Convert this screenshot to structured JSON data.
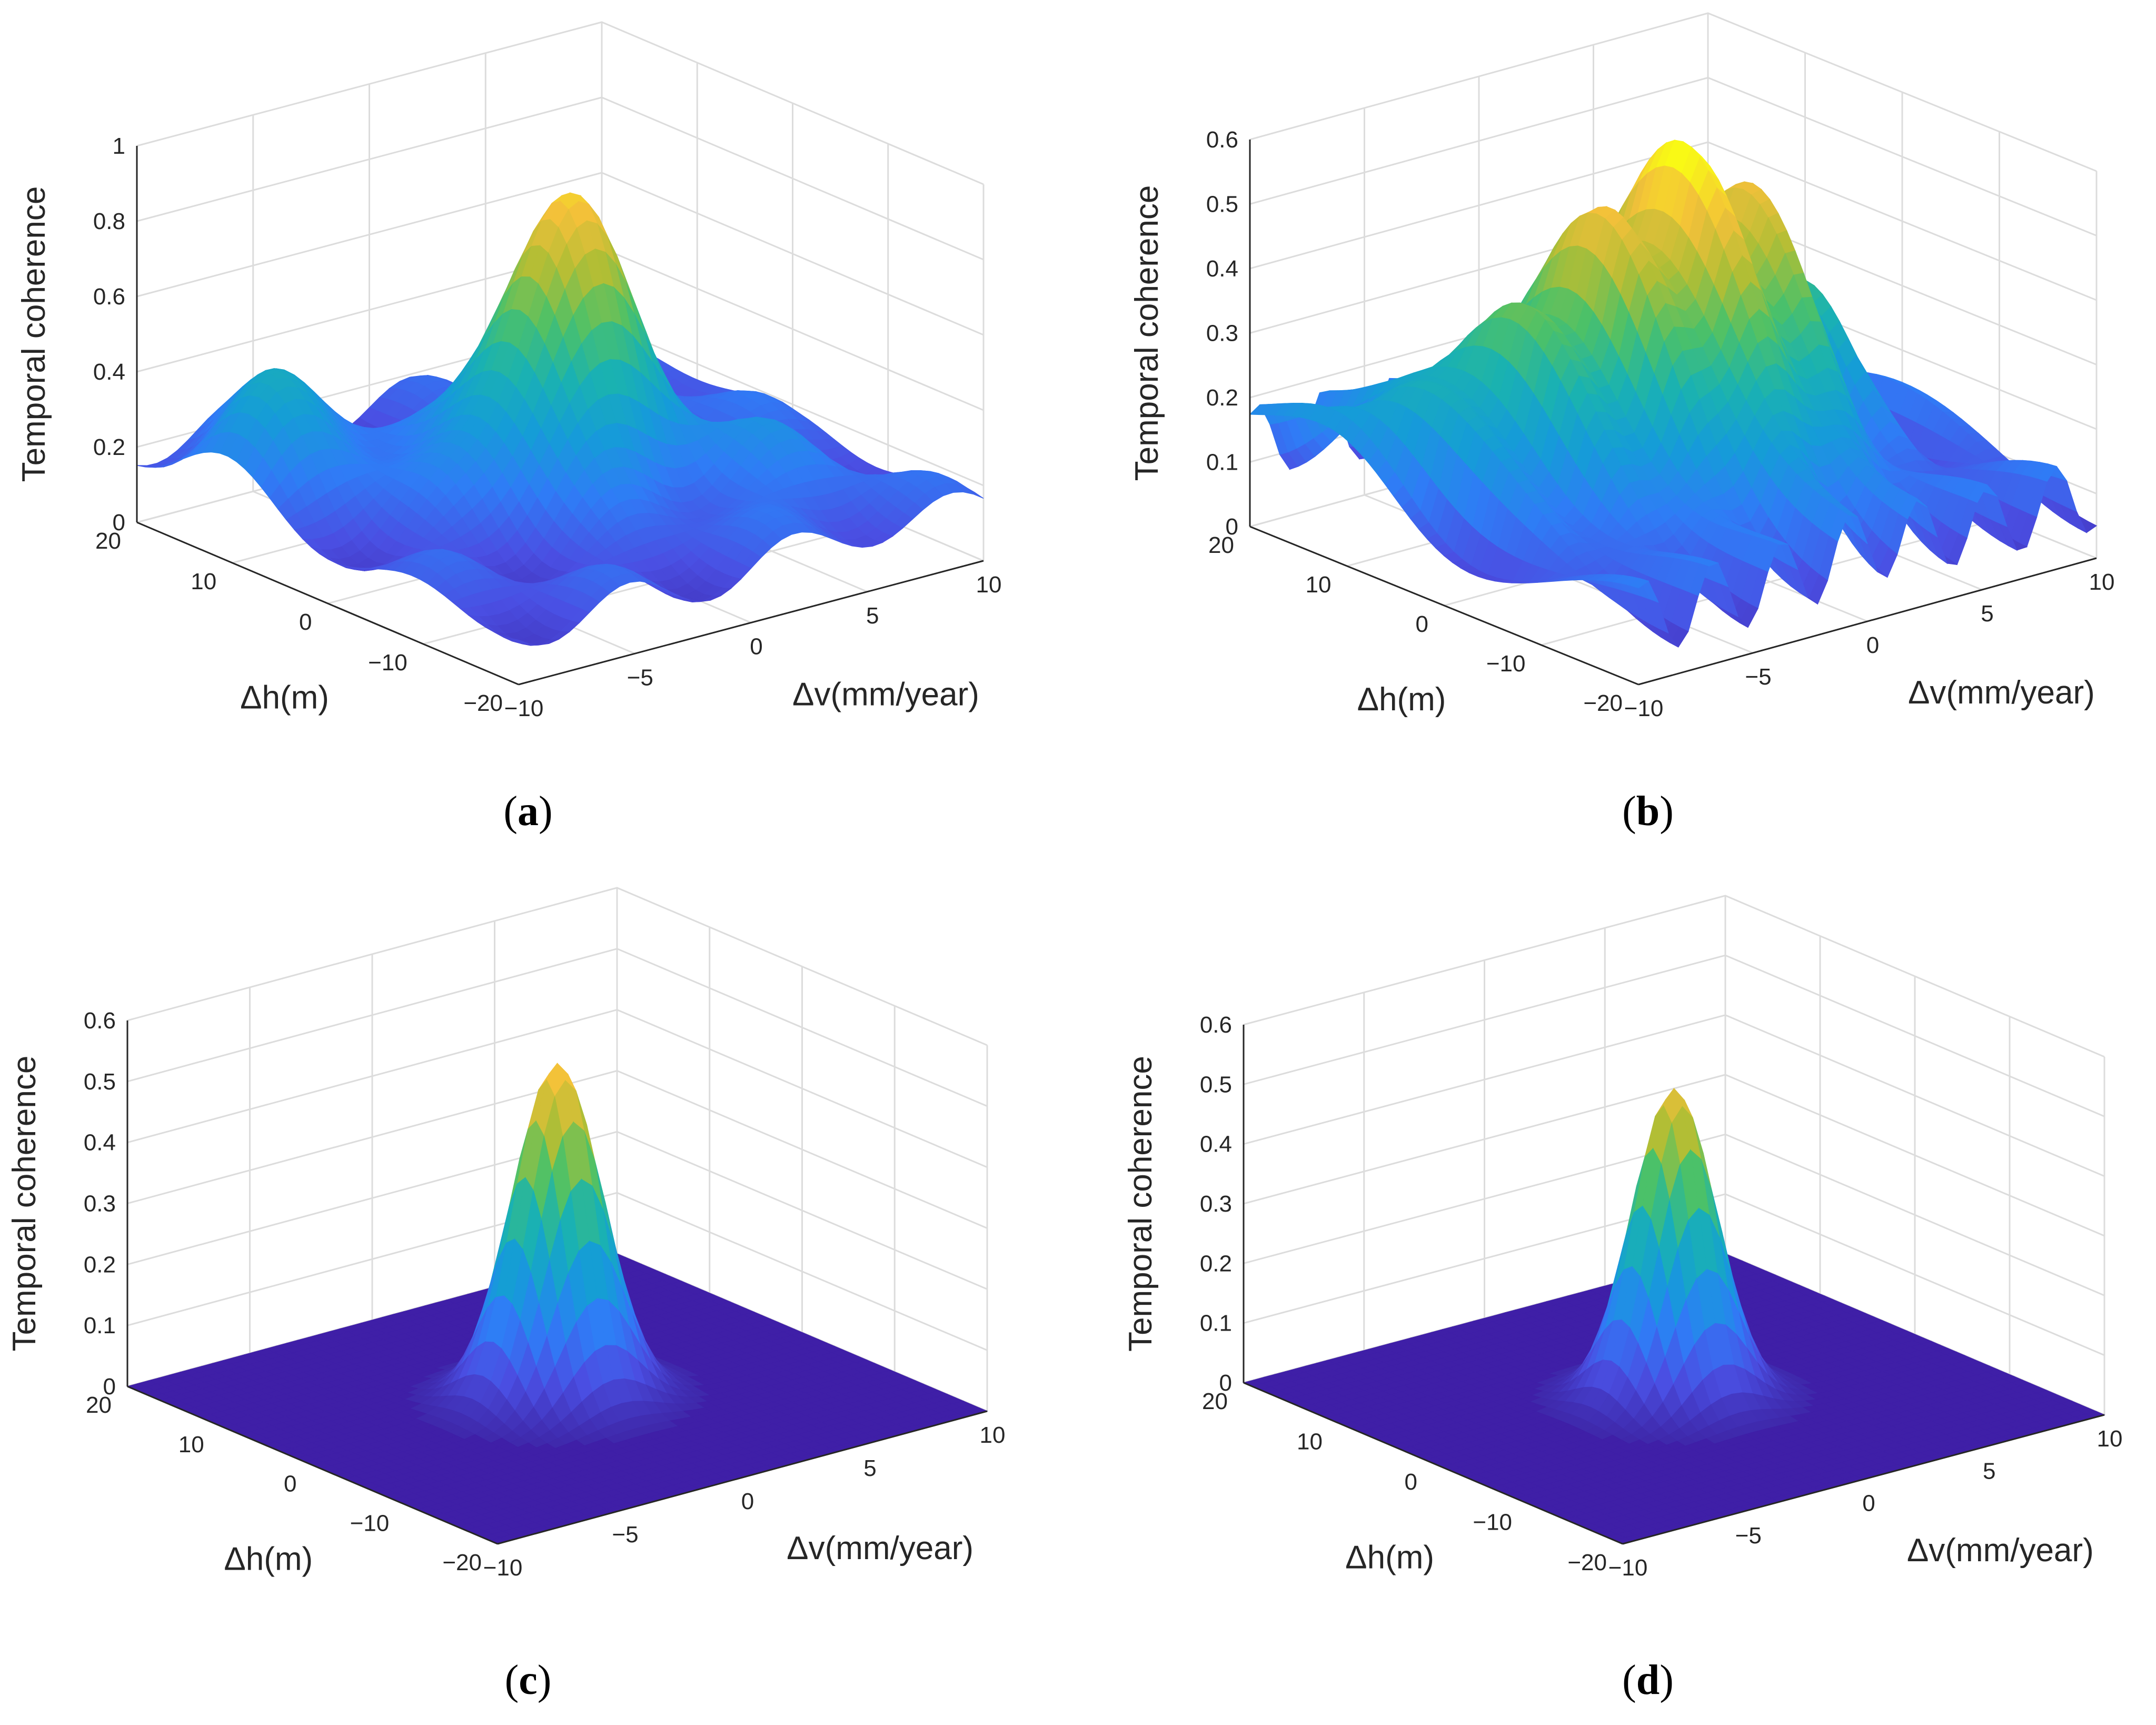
{
  "chart_data": [
    {
      "panel": "a",
      "caption": "(a)",
      "caption_letter": "a",
      "type": "surface3d",
      "title": "",
      "xlabel": "Δv(mm/year)",
      "ylabel": "Δh(m)",
      "zlabel": "Temporal coherence",
      "xlim": [
        -10,
        10
      ],
      "ylim": [
        -20,
        20
      ],
      "zlim": [
        0,
        1
      ],
      "xticks": [
        -10,
        -5,
        0,
        5,
        10
      ],
      "yticks": [
        -20,
        -10,
        0,
        10,
        20
      ],
      "zticks": [
        0,
        0.2,
        0.4,
        0.6,
        0.8,
        1
      ],
      "xtick_labels": [
        "−10",
        "−5",
        "0",
        "5",
        "10"
      ],
      "ytick_labels": [
        "−20",
        "−10",
        "0",
        "10",
        "20"
      ],
      "ztick_labels": [
        "0",
        "0.2",
        "0.4",
        "0.6",
        "0.8",
        "1"
      ],
      "grid": true,
      "peak": {
        "dv": 0,
        "dh": 0,
        "coherence": 0.9
      },
      "surface": {
        "base": 0.14,
        "min_value": 0.0,
        "components": [
          {
            "dv": 0,
            "dh": 0,
            "amp": 0.76,
            "sdv": 2.3,
            "sdh": 4.5
          },
          {
            "dv": -7,
            "dh": 12,
            "amp": 0.3,
            "sdv": 2.2,
            "sdh": 5
          },
          {
            "dv": 5,
            "dh": -10,
            "amp": 0.12,
            "sdv": 2.5,
            "sdh": 6
          },
          {
            "dv": 8,
            "dh": 8,
            "amp": 0.08,
            "sdv": 2.0,
            "sdh": 5
          }
        ],
        "ripple": {
          "amp": 0.07,
          "fdv": 0.9,
          "fdh": 0.35
        }
      }
    },
    {
      "panel": "b",
      "caption": "(b)",
      "caption_letter": "b",
      "type": "surface3d",
      "title": "",
      "xlabel": "Δv(mm/year)",
      "ylabel": "Δh(m)",
      "zlabel": "Temporal coherence",
      "xlim": [
        -10,
        10
      ],
      "ylim": [
        -20,
        20
      ],
      "zlim": [
        0,
        0.6
      ],
      "xticks": [
        -10,
        -5,
        0,
        5,
        10
      ],
      "yticks": [
        -20,
        -10,
        0,
        10,
        20
      ],
      "zticks": [
        0,
        0.1,
        0.2,
        0.3,
        0.4,
        0.5,
        0.6
      ],
      "xtick_labels": [
        "−10",
        "−5",
        "0",
        "5",
        "10"
      ],
      "ytick_labels": [
        "−20",
        "−10",
        "0",
        "10",
        "20"
      ],
      "ztick_labels": [
        "0",
        "0.1",
        "0.2",
        "0.3",
        "0.4",
        "0.5",
        "0.6"
      ],
      "grid": true,
      "peak": {
        "dv": 0,
        "dh": 0,
        "coherence": 0.6
      },
      "surface": {
        "base": 0.1,
        "min_value": 0.0,
        "components": [
          {
            "dv": 0,
            "dh": 0,
            "amp": 0.45,
            "sdv": 1.3,
            "sdh": 8
          },
          {
            "dv": 3,
            "dh": 0,
            "amp": 0.38,
            "sdv": 1.2,
            "sdh": 7
          },
          {
            "dv": -3,
            "dh": 2,
            "amp": 0.33,
            "sdv": 1.2,
            "sdh": 7
          },
          {
            "dv": 6,
            "dh": 2,
            "amp": 0.2,
            "sdv": 1.0,
            "sdh": 5
          },
          {
            "dv": -6,
            "dh": 4,
            "amp": 0.22,
            "sdv": 1.4,
            "sdh": 7
          },
          {
            "dv": -9,
            "dh": 10,
            "amp": 0.12,
            "sdv": 1.5,
            "sdh": 6
          }
        ],
        "ripple": {
          "amp": 0.06,
          "fdv": 2.1,
          "fdh": 0.15
        }
      }
    },
    {
      "panel": "c",
      "caption": "(c)",
      "caption_letter": "c",
      "type": "surface3d",
      "title": "",
      "xlabel": "Δv(mm/year)",
      "ylabel": "Δh(m)",
      "zlabel": "Temporal coherence",
      "xlim": [
        -10,
        10
      ],
      "ylim": [
        -20,
        20
      ],
      "zlim": [
        0,
        0.6
      ],
      "xticks": [
        -10,
        -5,
        0,
        5,
        10
      ],
      "yticks": [
        -20,
        -10,
        0,
        10,
        20
      ],
      "zticks": [
        0,
        0.1,
        0.2,
        0.3,
        0.4,
        0.5,
        0.6
      ],
      "xtick_labels": [
        "−10",
        "−5",
        "0",
        "5",
        "10"
      ],
      "ytick_labels": [
        "−20",
        "−10",
        "0",
        "10",
        "20"
      ],
      "ztick_labels": [
        "0",
        "0.1",
        "0.2",
        "0.3",
        "0.4",
        "0.5",
        "0.6"
      ],
      "grid": true,
      "peak": {
        "dv": 0,
        "dh": 0,
        "coherence": 0.55
      },
      "surface": {
        "base": 0.0,
        "min_value": 0.0,
        "components": [
          {
            "dv": 0,
            "dh": 0,
            "amp": 0.55,
            "sdv": 1.5,
            "sdh": 3.0
          }
        ],
        "ripple": {
          "amp": 0.0,
          "fdv": 0,
          "fdh": 0
        }
      }
    },
    {
      "panel": "d",
      "caption": "(d)",
      "caption_letter": "d",
      "type": "surface3d",
      "title": "",
      "xlabel": "Δv(mm/year)",
      "ylabel": "Δh(m)",
      "zlabel": "Temporal coherence",
      "xlim": [
        -10,
        10
      ],
      "ylim": [
        -20,
        20
      ],
      "zlim": [
        0,
        0.6
      ],
      "xticks": [
        -10,
        -5,
        0,
        5,
        10
      ],
      "yticks": [
        -20,
        -10,
        0,
        10,
        20
      ],
      "zticks": [
        0,
        0.1,
        0.2,
        0.3,
        0.4,
        0.5,
        0.6
      ],
      "xtick_labels": [
        "−10",
        "−5",
        "0",
        "5",
        "10"
      ],
      "ytick_labels": [
        "−20",
        "−10",
        "0",
        "10",
        "20"
      ],
      "ztick_labels": [
        "0",
        "0.1",
        "0.2",
        "0.3",
        "0.4",
        "0.5",
        "0.6"
      ],
      "grid": true,
      "peak": {
        "dv": 0,
        "dh": 0,
        "coherence": 0.52
      },
      "surface": {
        "base": 0.0,
        "min_value": 0.0,
        "components": [
          {
            "dv": 0,
            "dh": 0,
            "amp": 0.52,
            "sdv": 1.4,
            "sdh": 2.8
          }
        ],
        "ripple": {
          "amp": 0.0,
          "fdv": 0,
          "fdh": 0
        }
      }
    }
  ],
  "colors": {
    "background": "#ffffff",
    "grid": "#dcdcdc",
    "axis": "#262626",
    "text": "#262626",
    "floor": "#3f1fa7",
    "colormap": [
      "#3e26a8",
      "#4a4fe3",
      "#2f7cf6",
      "#159cd8",
      "#1ab2b1",
      "#4cc168",
      "#b1be35",
      "#f3c03a",
      "#f9fb14"
    ]
  }
}
